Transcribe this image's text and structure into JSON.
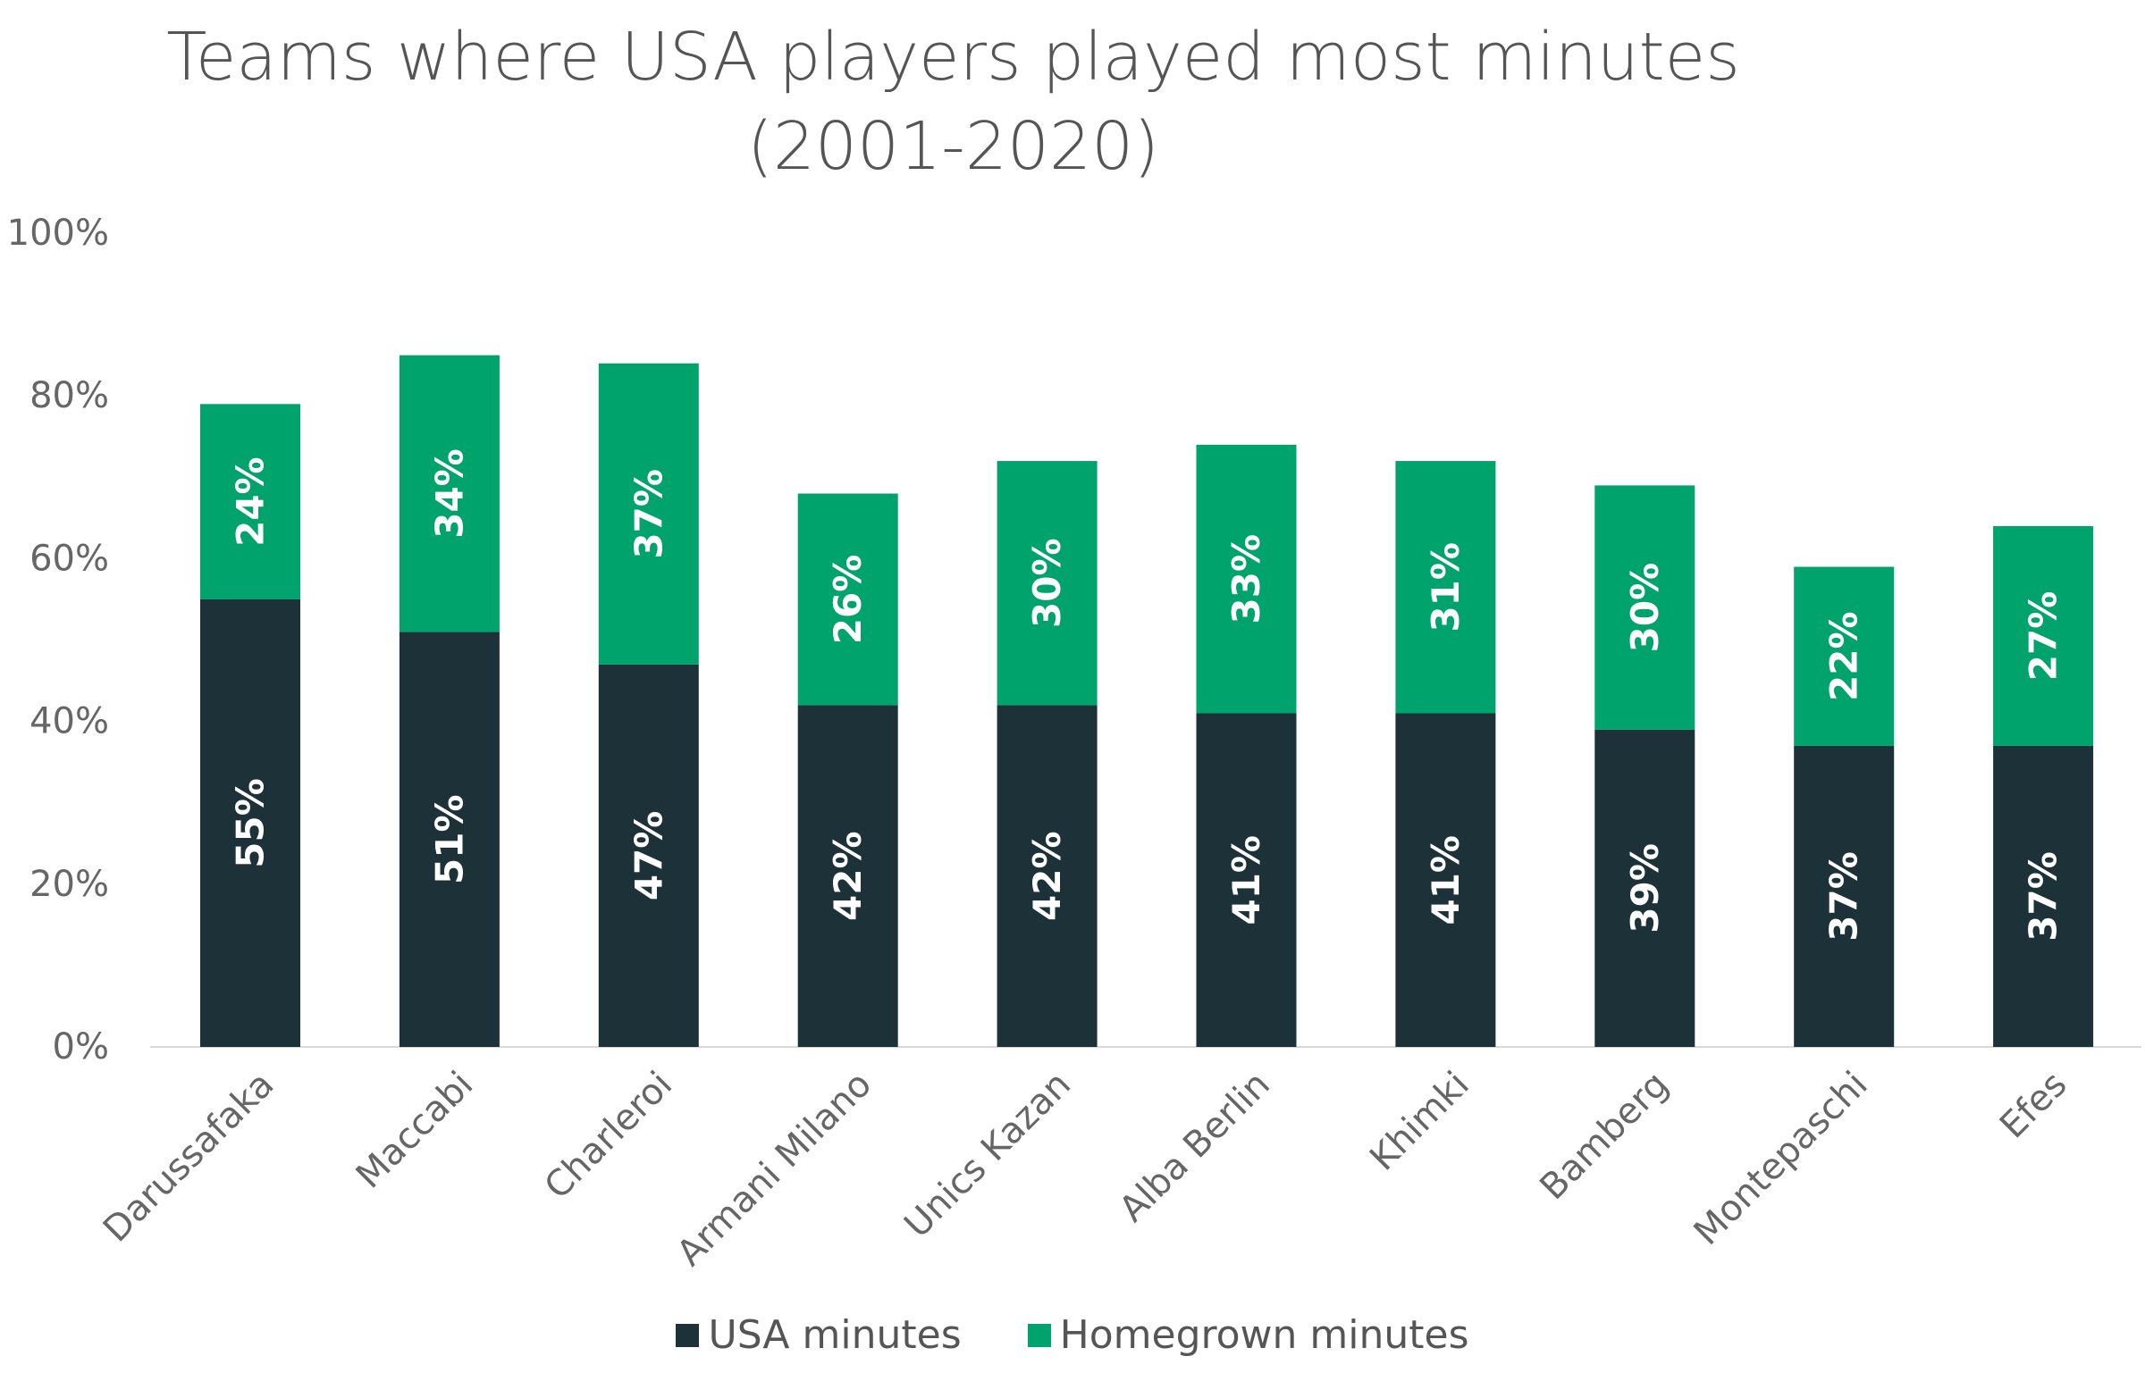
{
  "chart_data": {
    "type": "bar",
    "stacked": true,
    "title": "Teams where USA players played most minutes (2001-2020)",
    "title_lines": [
      "Teams where USA players played most minutes",
      "(2001-2020)"
    ],
    "categories": [
      "Darussafaka",
      "Maccabi",
      "Charleroi",
      "Armani Milano",
      "Unics Kazan",
      "Alba Berlin",
      "Khimki",
      "Bamberg",
      "Montepaschi",
      "Efes"
    ],
    "series": [
      {
        "name": "USA minutes",
        "color": "#1c3238",
        "values": [
          55,
          51,
          47,
          42,
          42,
          41,
          41,
          39,
          37,
          37
        ],
        "labels": [
          "55%",
          "51%",
          "47%",
          "42%",
          "42%",
          "41%",
          "41%",
          "39%",
          "37%",
          "37%"
        ]
      },
      {
        "name": "Homegrown minutes",
        "color": "#00a36c",
        "values": [
          24,
          34,
          37,
          26,
          30,
          33,
          31,
          30,
          22,
          27
        ],
        "labels": [
          "24%",
          "34%",
          "37%",
          "26%",
          "30%",
          "33%",
          "31%",
          "30%",
          "22%",
          "27%"
        ]
      }
    ],
    "ylim": [
      0,
      100
    ],
    "yticks": [
      "0%",
      "20%",
      "40%",
      "60%",
      "80%",
      "100%"
    ],
    "ytick_values": [
      0,
      20,
      40,
      60,
      80,
      100
    ],
    "grid": false,
    "legend": "bottom"
  }
}
